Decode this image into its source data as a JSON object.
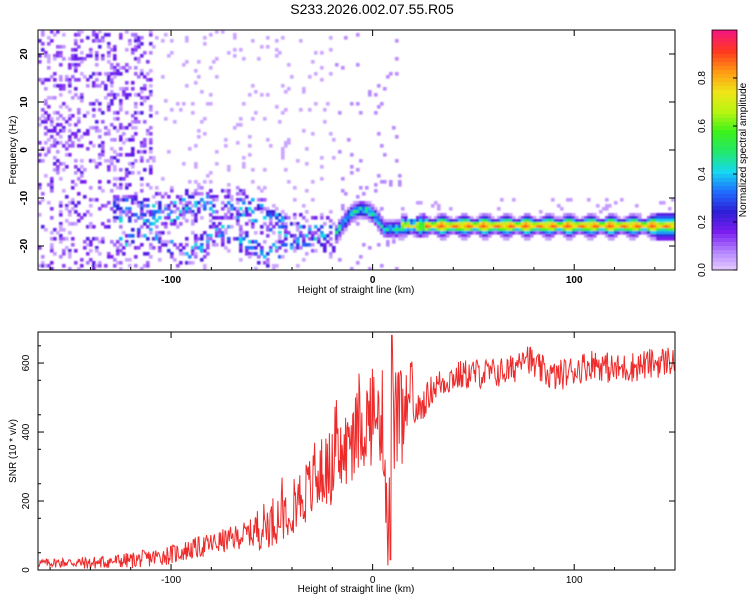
{
  "title": "S233.2026.002.07.55.R05",
  "chart_data": [
    {
      "type": "heatmap",
      "xlabel": "Height of straight line (km)",
      "ylabel": "Frequency (Hz)",
      "xlim": [
        -166,
        150
      ],
      "ylim": [
        -25,
        25
      ],
      "xticks": [
        "-100",
        "0",
        "100"
      ],
      "xtick_values": [
        -100,
        0,
        100
      ],
      "yticks": [
        "-20",
        "-10",
        "0",
        "10",
        "20"
      ],
      "ytick_values": [
        -20,
        -10,
        0,
        10,
        20
      ],
      "colorbar": {
        "label": "Normalized spectral amplitude",
        "ticks": [
          "0.0",
          "0.2",
          "0.4",
          "0.6",
          "0.8"
        ],
        "tick_values": [
          0,
          0.2,
          0.4,
          0.6,
          0.8
        ],
        "range": [
          0,
          1
        ],
        "colors": [
          "#e9d3ff",
          "#b585ff",
          "#7a1ef0",
          "#2d1fd6",
          "#1f6cff",
          "#16d8f0",
          "#22e86b",
          "#3df21a",
          "#b8f511",
          "#f0e418",
          "#ff9a14",
          "#ff3a1e",
          "#f5187a"
        ]
      },
      "features": [
        {
          "name": "main frequency line",
          "x_range": [
            15,
            150
          ],
          "frequency": -15.5,
          "amplitude": 0.9
        },
        {
          "name": "transition hump",
          "x_range": [
            -20,
            15
          ],
          "frequency": -14,
          "amplitude": 0.45
        },
        {
          "name": "scattered noise",
          "x_range": [
            -166,
            -25
          ],
          "frequency_range": [
            -25,
            25
          ],
          "amplitude": 0.15
        }
      ]
    },
    {
      "type": "line",
      "xlabel": "Height of straight line (km)",
      "ylabel": "SNR (10 * v/v)",
      "xlim": [
        -166,
        150
      ],
      "ylim": [
        0,
        690
      ],
      "xticks": [
        "-100",
        "0",
        "100"
      ],
      "xtick_values": [
        -100,
        0,
        100
      ],
      "yticks": [
        "0",
        "200",
        "400",
        "600"
      ],
      "ytick_values": [
        0,
        200,
        400,
        600
      ],
      "series": [
        {
          "name": "SNR",
          "color": "#ee2b2b",
          "x": [
            -166,
            -150,
            -140,
            -130,
            -120,
            -110,
            -100,
            -90,
            -80,
            -70,
            -60,
            -50,
            -40,
            -30,
            -25,
            -20,
            -15,
            -10,
            -5,
            0,
            5,
            8,
            10,
            15,
            20,
            25,
            30,
            40,
            50,
            60,
            70,
            75,
            80,
            90,
            100,
            110,
            120,
            130,
            140,
            150
          ],
          "y": [
            20,
            22,
            20,
            25,
            28,
            35,
            45,
            60,
            75,
            90,
            110,
            140,
            190,
            240,
            280,
            300,
            330,
            380,
            420,
            440,
            440,
            100,
            430,
            430,
            450,
            480,
            530,
            560,
            570,
            570,
            580,
            640,
            590,
            560,
            580,
            600,
            580,
            590,
            600,
            610
          ]
        }
      ]
    }
  ]
}
